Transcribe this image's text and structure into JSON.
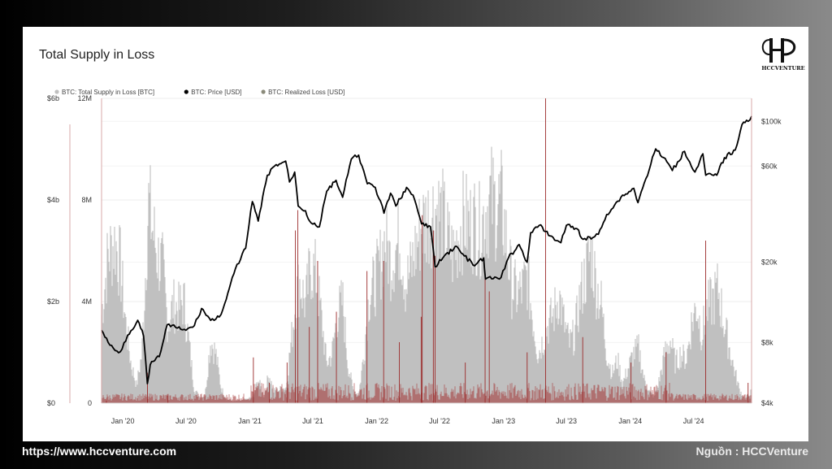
{
  "footer": {
    "url": "https://www.hccventure.com",
    "source": "Nguồn : HCCVenture"
  },
  "logo": {
    "text": "HCCVENTURE"
  },
  "chart_data": {
    "type": "area",
    "title": "Total Supply in Loss",
    "legend_position": "top-left",
    "grid": true,
    "legend": [
      {
        "name": "BTC: Total Supply in Loss [BTC]",
        "color": "#c0c0c0"
      },
      {
        "name": "BTC: Price [USD]",
        "color": "#000000"
      },
      {
        "name": "BTC: Realized Loss [USD]",
        "color": "#8a8a7a"
      }
    ],
    "x_ticks": [
      "Jan '20",
      "Jul '20",
      "Jan '21",
      "Jul '21",
      "Jan '22",
      "Jul '22",
      "Jan '23",
      "Jul '23",
      "Jan '24",
      "Jul '24"
    ],
    "x_range": [
      "2019-11-01",
      "2024-12-15"
    ],
    "axes": {
      "realized_loss": {
        "ticks": [
          "$0",
          "$2b",
          "$4b",
          "$6b"
        ],
        "range": [
          0,
          6000000000
        ]
      },
      "supply_in_loss": {
        "ticks": [
          "0",
          "4M",
          "8M",
          "12M"
        ],
        "range": [
          0,
          12000000
        ]
      },
      "price": {
        "scale": "log",
        "ticks": [
          "$4k",
          "$8k",
          "$20k",
          "$60k",
          "$100k"
        ],
        "tick_values": [
          4000,
          8000,
          20000,
          60000,
          100000
        ],
        "range": [
          4000,
          130000
        ]
      }
    },
    "series": [
      {
        "name": "BTC: Total Supply in Loss [BTC]",
        "color": "#c0c0c0",
        "points": [
          [
            "2019-11-01",
            4500000
          ],
          [
            "2019-11-20",
            7500000
          ],
          [
            "2019-12-10",
            8200000
          ],
          [
            "2019-12-25",
            7000000
          ],
          [
            "2020-01-10",
            4000000
          ],
          [
            "2020-01-25",
            2000000
          ],
          [
            "2020-02-10",
            900000
          ],
          [
            "2020-02-25",
            2500000
          ],
          [
            "2020-03-05",
            6000000
          ],
          [
            "2020-03-15",
            10200000
          ],
          [
            "2020-03-25",
            9000000
          ],
          [
            "2020-04-10",
            7500000
          ],
          [
            "2020-04-25",
            6800000
          ],
          [
            "2020-05-10",
            4000000
          ],
          [
            "2020-05-25",
            5000000
          ],
          [
            "2020-06-10",
            4800000
          ],
          [
            "2020-06-25",
            5200000
          ],
          [
            "2020-07-10",
            3000000
          ],
          [
            "2020-07-25",
            700000
          ],
          [
            "2020-08-10",
            300000
          ],
          [
            "2020-08-25",
            400000
          ],
          [
            "2020-09-10",
            3200000
          ],
          [
            "2020-09-25",
            2500000
          ],
          [
            "2020-10-10",
            800000
          ],
          [
            "2020-10-25",
            200000
          ],
          [
            "2020-11-15",
            100000
          ],
          [
            "2020-12-15",
            150000
          ],
          [
            "2021-01-10",
            300000
          ],
          [
            "2021-01-25",
            1200000
          ],
          [
            "2021-02-10",
            300000
          ],
          [
            "2021-02-25",
            1500000
          ],
          [
            "2021-03-10",
            600000
          ],
          [
            "2021-04-15",
            800000
          ],
          [
            "2021-05-15",
            5500000
          ],
          [
            "2021-05-25",
            6200000
          ],
          [
            "2021-06-10",
            5000000
          ],
          [
            "2021-06-25",
            7000000
          ],
          [
            "2021-07-10",
            6500000
          ],
          [
            "2021-07-25",
            4500000
          ],
          [
            "2021-08-10",
            2000000
          ],
          [
            "2021-08-25",
            2500000
          ],
          [
            "2021-09-10",
            4500000
          ],
          [
            "2021-09-25",
            5200000
          ],
          [
            "2021-10-10",
            2000000
          ],
          [
            "2021-10-25",
            700000
          ],
          [
            "2021-11-10",
            400000
          ],
          [
            "2021-11-25",
            2500000
          ],
          [
            "2021-12-10",
            5500000
          ],
          [
            "2021-12-25",
            6000000
          ],
          [
            "2022-01-10",
            7000000
          ],
          [
            "2022-01-25",
            8300000
          ],
          [
            "2022-02-10",
            7200000
          ],
          [
            "2022-02-25",
            7800000
          ],
          [
            "2022-03-10",
            8400000
          ],
          [
            "2022-03-25",
            6000000
          ],
          [
            "2022-04-10",
            6800000
          ],
          [
            "2022-04-25",
            8000000
          ],
          [
            "2022-05-10",
            9000000
          ],
          [
            "2022-05-25",
            9300000
          ],
          [
            "2022-06-10",
            9700000
          ],
          [
            "2022-06-20",
            9900000
          ],
          [
            "2022-07-10",
            9400000
          ],
          [
            "2022-07-25",
            8200000
          ],
          [
            "2022-08-10",
            7500000
          ],
          [
            "2022-08-25",
            8600000
          ],
          [
            "2022-09-10",
            9400000
          ],
          [
            "2022-09-25",
            9000000
          ],
          [
            "2022-10-10",
            9200000
          ],
          [
            "2022-10-25",
            8700000
          ],
          [
            "2022-11-10",
            9800000
          ],
          [
            "2022-11-25",
            10400000
          ],
          [
            "2022-12-10",
            10000000
          ],
          [
            "2022-12-25",
            10200000
          ],
          [
            "2023-01-10",
            8200000
          ],
          [
            "2023-01-25",
            6000000
          ],
          [
            "2023-02-10",
            5500000
          ],
          [
            "2023-02-25",
            5800000
          ],
          [
            "2023-03-10",
            6500000
          ],
          [
            "2023-03-25",
            4500000
          ],
          [
            "2023-04-10",
            2500000
          ],
          [
            "2023-04-25",
            3200000
          ],
          [
            "2023-05-10",
            4000000
          ],
          [
            "2023-05-25",
            4500000
          ],
          [
            "2023-06-10",
            5500000
          ],
          [
            "2023-06-25",
            4000000
          ],
          [
            "2023-07-10",
            3000000
          ],
          [
            "2023-07-25",
            3500000
          ],
          [
            "2023-08-10",
            5500000
          ],
          [
            "2023-08-25",
            6500000
          ],
          [
            "2023-09-10",
            7800000
          ],
          [
            "2023-09-25",
            6000000
          ],
          [
            "2023-10-10",
            5000000
          ],
          [
            "2023-10-25",
            2500000
          ],
          [
            "2023-11-10",
            1500000
          ],
          [
            "2023-11-25",
            2200000
          ],
          [
            "2023-12-10",
            1000000
          ],
          [
            "2024-01-10",
            2500000
          ],
          [
            "2024-01-25",
            2800000
          ],
          [
            "2024-02-10",
            1200000
          ],
          [
            "2024-02-25",
            600000
          ],
          [
            "2024-03-10",
            300000
          ],
          [
            "2024-03-25",
            1200000
          ],
          [
            "2024-04-10",
            2600000
          ],
          [
            "2024-04-25",
            3200000
          ],
          [
            "2024-05-10",
            2000000
          ],
          [
            "2024-05-25",
            2500000
          ],
          [
            "2024-06-10",
            2200000
          ],
          [
            "2024-06-25",
            4000000
          ],
          [
            "2024-07-10",
            5000000
          ],
          [
            "2024-07-25",
            3500000
          ],
          [
            "2024-08-10",
            4800000
          ],
          [
            "2024-08-25",
            5200000
          ],
          [
            "2024-09-10",
            5800000
          ],
          [
            "2024-09-25",
            4200000
          ],
          [
            "2024-10-10",
            3000000
          ],
          [
            "2024-10-25",
            1800000
          ],
          [
            "2024-11-10",
            700000
          ],
          [
            "2024-11-25",
            200000
          ],
          [
            "2024-12-15",
            600000
          ]
        ]
      },
      {
        "name": "BTC: Price [USD]",
        "color": "#000000",
        "points": [
          [
            "2019-11-01",
            9200
          ],
          [
            "2019-11-20",
            8000
          ],
          [
            "2019-12-10",
            7300
          ],
          [
            "2019-12-25",
            7200
          ],
          [
            "2020-01-15",
            8700
          ],
          [
            "2020-02-13",
            10300
          ],
          [
            "2020-03-01",
            8600
          ],
          [
            "2020-03-12",
            5000
          ],
          [
            "2020-03-20",
            6200
          ],
          [
            "2020-04-15",
            6800
          ],
          [
            "2020-05-08",
            9800
          ],
          [
            "2020-06-01",
            9500
          ],
          [
            "2020-07-01",
            9200
          ],
          [
            "2020-07-25",
            9700
          ],
          [
            "2020-08-15",
            11800
          ],
          [
            "2020-09-10",
            10300
          ],
          [
            "2020-10-05",
            10700
          ],
          [
            "2020-10-25",
            13100
          ],
          [
            "2020-11-20",
            18500
          ],
          [
            "2020-12-20",
            23500
          ],
          [
            "2021-01-08",
            40000
          ],
          [
            "2021-01-25",
            32000
          ],
          [
            "2021-02-20",
            54000
          ],
          [
            "2021-03-13",
            60000
          ],
          [
            "2021-04-14",
            63500
          ],
          [
            "2021-04-25",
            50000
          ],
          [
            "2021-05-10",
            56000
          ],
          [
            "2021-05-20",
            38000
          ],
          [
            "2021-06-10",
            36000
          ],
          [
            "2021-06-22",
            32000
          ],
          [
            "2021-07-20",
            30000
          ],
          [
            "2021-08-10",
            45000
          ],
          [
            "2021-09-06",
            51000
          ],
          [
            "2021-09-25",
            42000
          ],
          [
            "2021-10-20",
            65000
          ],
          [
            "2021-11-10",
            68000
          ],
          [
            "2021-12-05",
            49000
          ],
          [
            "2021-12-28",
            47000
          ],
          [
            "2022-01-22",
            35000
          ],
          [
            "2022-02-10",
            44000
          ],
          [
            "2022-02-25",
            38000
          ],
          [
            "2022-03-28",
            47000
          ],
          [
            "2022-04-20",
            41000
          ],
          [
            "2022-05-10",
            31000
          ],
          [
            "2022-06-05",
            30000
          ],
          [
            "2022-06-18",
            19000
          ],
          [
            "2022-07-10",
            21000
          ],
          [
            "2022-08-15",
            24000
          ],
          [
            "2022-09-10",
            21500
          ],
          [
            "2022-10-10",
            19200
          ],
          [
            "2022-11-05",
            21000
          ],
          [
            "2022-11-10",
            16500
          ],
          [
            "2022-12-25",
            16800
          ],
          [
            "2023-01-15",
            21000
          ],
          [
            "2023-02-15",
            24500
          ],
          [
            "2023-03-10",
            20000
          ],
          [
            "2023-03-20",
            28000
          ],
          [
            "2023-04-14",
            30500
          ],
          [
            "2023-05-15",
            27000
          ],
          [
            "2023-06-15",
            25000
          ],
          [
            "2023-07-01",
            30500
          ],
          [
            "2023-08-01",
            29300
          ],
          [
            "2023-08-18",
            26000
          ],
          [
            "2023-09-15",
            26500
          ],
          [
            "2023-10-01",
            27500
          ],
          [
            "2023-10-25",
            34500
          ],
          [
            "2023-12-05",
            42000
          ],
          [
            "2024-01-11",
            46500
          ],
          [
            "2024-01-23",
            39500
          ],
          [
            "2024-02-15",
            52000
          ],
          [
            "2024-03-14",
            73000
          ],
          [
            "2024-04-15",
            63000
          ],
          [
            "2024-05-01",
            57000
          ],
          [
            "2024-06-05",
            71000
          ],
          [
            "2024-07-05",
            56000
          ],
          [
            "2024-07-28",
            69000
          ],
          [
            "2024-08-05",
            54000
          ],
          [
            "2024-09-06",
            54000
          ],
          [
            "2024-09-28",
            66000
          ],
          [
            "2024-10-29",
            72000
          ],
          [
            "2024-11-13",
            90000
          ],
          [
            "2024-11-22",
            99000
          ],
          [
            "2024-12-05",
            100000
          ],
          [
            "2024-12-15",
            106000
          ]
        ]
      },
      {
        "name": "BTC: Realized Loss [USD]",
        "color": "#8a8a7a",
        "spikes": [
          [
            "2019-11-15",
            50000000
          ],
          [
            "2020-03-12",
            600000000
          ],
          [
            "2020-05-10",
            150000000
          ],
          [
            "2021-01-11",
            900000000
          ],
          [
            "2021-02-26",
            400000000
          ],
          [
            "2021-04-18",
            800000000
          ],
          [
            "2021-05-12",
            3400000000
          ],
          [
            "2021-05-19",
            3800000000
          ],
          [
            "2021-06-21",
            1500000000
          ],
          [
            "2021-07-15",
            2800000000
          ],
          [
            "2021-09-07",
            1800000000
          ],
          [
            "2021-12-04",
            2600000000
          ],
          [
            "2022-01-21",
            2800000000
          ],
          [
            "2022-03-07",
            1200000000
          ],
          [
            "2022-05-09",
            1700000000
          ],
          [
            "2022-05-12",
            3700000000
          ],
          [
            "2022-06-13",
            3400000000
          ],
          [
            "2022-06-18",
            2900000000
          ],
          [
            "2022-09-13",
            800000000
          ],
          [
            "2022-11-09",
            2600000000
          ],
          [
            "2022-11-21",
            2200000000
          ],
          [
            "2023-03-10",
            1000000000
          ],
          [
            "2023-05-02",
            6000000000
          ],
          [
            "2023-08-17",
            1300000000
          ],
          [
            "2024-01-03",
            800000000
          ],
          [
            "2024-04-13",
            1000000000
          ],
          [
            "2024-08-05",
            3200000000
          ],
          [
            "2024-12-05",
            400000000
          ]
        ]
      }
    ]
  }
}
